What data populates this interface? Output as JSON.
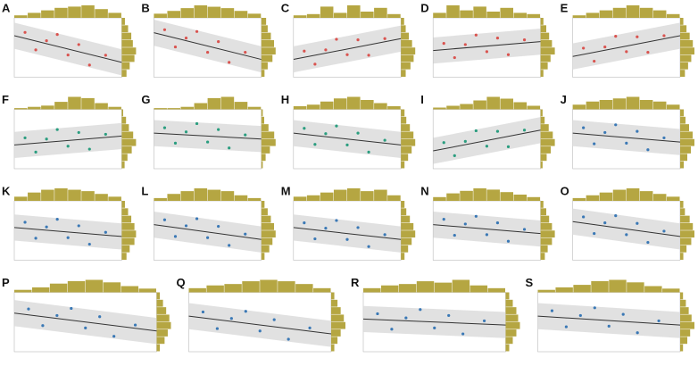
{
  "chart_data": [
    {
      "type": "scatter",
      "label": "A",
      "color": "#d9534f",
      "xlim": [
        0,
        1
      ],
      "ylim": [
        0,
        1
      ],
      "x": [
        0.1,
        0.2,
        0.3,
        0.4,
        0.5,
        0.6,
        0.7,
        0.85
      ],
      "y": [
        0.755,
        0.46,
        0.615,
        0.72,
        0.375,
        0.55,
        0.205,
        0.37
      ],
      "fit": [
        0.7,
        0.25
      ],
      "xhist": [
        2,
        4,
        6,
        8,
        9,
        10,
        7,
        4
      ],
      "yhist": [
        3,
        5,
        8,
        9,
        7,
        6,
        4,
        2
      ]
    },
    {
      "type": "scatter",
      "label": "B",
      "color": "#d9534f",
      "xlim": [
        0,
        1
      ],
      "ylim": [
        0,
        1
      ],
      "x": [
        0.1,
        0.2,
        0.3,
        0.4,
        0.5,
        0.6,
        0.7,
        0.85
      ],
      "y": [
        0.8,
        0.51,
        0.66,
        0.77,
        0.42,
        0.6,
        0.25,
        0.42
      ],
      "fit": [
        0.75,
        0.3
      ],
      "xhist": [
        3,
        5,
        7,
        9,
        8,
        7,
        5,
        3
      ],
      "yhist": [
        2,
        4,
        7,
        9,
        8,
        6,
        4,
        3
      ]
    },
    {
      "type": "scatter",
      "label": "C",
      "color": "#d9534f",
      "xlim": [
        0,
        1
      ],
      "ylim": [
        0,
        1
      ],
      "x": [
        0.1,
        0.2,
        0.3,
        0.4,
        0.5,
        0.6,
        0.7,
        0.85
      ],
      "y": [
        0.44,
        0.22,
        0.46,
        0.64,
        0.38,
        0.63,
        0.37,
        0.65
      ],
      "fit": [
        0.3,
        0.65
      ],
      "xhist": [
        2,
        3,
        9,
        4,
        10,
        5,
        8,
        3
      ],
      "yhist": [
        3,
        6,
        8,
        9,
        7,
        5,
        3,
        2
      ]
    },
    {
      "type": "scatter",
      "label": "D",
      "color": "#d9534f",
      "xlim": [
        0,
        1
      ],
      "ylim": [
        0,
        1
      ],
      "x": [
        0.1,
        0.2,
        0.3,
        0.4,
        0.5,
        0.6,
        0.7,
        0.85
      ],
      "y": [
        0.57,
        0.33,
        0.55,
        0.71,
        0.43,
        0.66,
        0.38,
        0.63
      ],
      "fit": [
        0.45,
        0.6
      ],
      "xhist": [
        4,
        10,
        6,
        9,
        5,
        8,
        4,
        3
      ],
      "yhist": [
        2,
        5,
        7,
        10,
        8,
        6,
        4,
        2
      ]
    },
    {
      "type": "scatter",
      "label": "E",
      "color": "#d9534f",
      "xlim": [
        0,
        1
      ],
      "ylim": [
        0,
        1
      ],
      "x": [
        0.1,
        0.2,
        0.3,
        0.4,
        0.5,
        0.6,
        0.7,
        0.85
      ],
      "y": [
        0.49,
        0.27,
        0.51,
        0.69,
        0.43,
        0.68,
        0.42,
        0.7
      ],
      "fit": [
        0.35,
        0.7
      ],
      "xhist": [
        2,
        4,
        6,
        8,
        10,
        8,
        6,
        3
      ],
      "yhist": [
        3,
        5,
        7,
        9,
        8,
        6,
        4,
        2
      ]
    },
    {
      "type": "scatter",
      "label": "F",
      "color": "#2a9d7f",
      "xlim": [
        0,
        1
      ],
      "ylim": [
        0,
        1
      ],
      "x": [
        0.1,
        0.2,
        0.3,
        0.4,
        0.5,
        0.6,
        0.7,
        0.85
      ],
      "y": [
        0.52,
        0.28,
        0.5,
        0.66,
        0.38,
        0.61,
        0.33,
        0.58
      ],
      "fit": [
        0.4,
        0.55
      ],
      "xhist": [
        1,
        2,
        3,
        6,
        10,
        9,
        5,
        2
      ],
      "yhist": [
        2,
        4,
        7,
        10,
        8,
        5,
        3,
        1
      ]
    },
    {
      "type": "scatter",
      "label": "G",
      "color": "#2a9d7f",
      "xlim": [
        0,
        1
      ],
      "ylim": [
        0,
        1
      ],
      "x": [
        0.1,
        0.2,
        0.3,
        0.4,
        0.5,
        0.6,
        0.7,
        0.85
      ],
      "y": [
        0.69,
        0.43,
        0.62,
        0.76,
        0.45,
        0.66,
        0.35,
        0.57
      ],
      "fit": [
        0.6,
        0.5
      ],
      "xhist": [
        1,
        1,
        2,
        5,
        9,
        10,
        6,
        2
      ],
      "yhist": [
        1,
        3,
        6,
        10,
        9,
        5,
        2,
        1
      ]
    },
    {
      "type": "scatter",
      "label": "H",
      "color": "#2a9d7f",
      "xlim": [
        0,
        1
      ],
      "ylim": [
        0,
        1
      ],
      "x": [
        0.1,
        0.2,
        0.3,
        0.4,
        0.5,
        0.6,
        0.7,
        0.85
      ],
      "y": [
        0.68,
        0.41,
        0.59,
        0.72,
        0.4,
        0.6,
        0.28,
        0.48
      ],
      "fit": [
        0.6,
        0.4
      ],
      "xhist": [
        2,
        3,
        5,
        7,
        8,
        6,
        4,
        2
      ],
      "yhist": [
        2,
        4,
        6,
        8,
        7,
        5,
        3,
        2
      ]
    },
    {
      "type": "scatter",
      "label": "I",
      "color": "#2a9d7f",
      "xlim": [
        0,
        1
      ],
      "ylim": [
        0,
        1
      ],
      "x": [
        0.1,
        0.2,
        0.3,
        0.4,
        0.5,
        0.6,
        0.7,
        0.85
      ],
      "y": [
        0.44,
        0.22,
        0.46,
        0.64,
        0.38,
        0.63,
        0.37,
        0.65
      ],
      "fit": [
        0.3,
        0.65
      ],
      "xhist": [
        1,
        2,
        3,
        5,
        7,
        6,
        4,
        2
      ],
      "yhist": [
        1,
        3,
        5,
        7,
        6,
        4,
        2,
        1
      ]
    },
    {
      "type": "scatter",
      "label": "J",
      "color": "#3a78b5",
      "xlim": [
        0,
        1
      ],
      "ylim": [
        0,
        1
      ],
      "x": [
        0.1,
        0.2,
        0.3,
        0.4,
        0.5,
        0.6,
        0.7,
        0.85
      ],
      "y": [
        0.69,
        0.42,
        0.61,
        0.74,
        0.43,
        0.63,
        0.32,
        0.52
      ],
      "fit": [
        0.6,
        0.45
      ],
      "xhist": [
        3,
        5,
        6,
        7,
        8,
        6,
        5,
        3
      ],
      "yhist": [
        2,
        4,
        6,
        8,
        7,
        5,
        3,
        2
      ]
    },
    {
      "type": "scatter",
      "label": "K",
      "color": "#3a78b5",
      "xlim": [
        0,
        1
      ],
      "ylim": [
        0,
        1
      ],
      "x": [
        0.1,
        0.2,
        0.3,
        0.4,
        0.5,
        0.6,
        0.7,
        0.85
      ],
      "y": [
        0.64,
        0.37,
        0.56,
        0.69,
        0.38,
        0.58,
        0.27,
        0.47
      ],
      "fit": [
        0.55,
        0.4
      ],
      "xhist": [
        3,
        6,
        8,
        9,
        8,
        7,
        5,
        3
      ],
      "yhist": [
        3,
        5,
        8,
        9,
        8,
        6,
        4,
        2
      ]
    },
    {
      "type": "scatter",
      "label": "L",
      "color": "#3a78b5",
      "xlim": [
        0,
        1
      ],
      "ylim": [
        0,
        1
      ],
      "x": [
        0.1,
        0.2,
        0.3,
        0.4,
        0.5,
        0.6,
        0.7,
        0.85
      ],
      "y": [
        0.68,
        0.4,
        0.58,
        0.7,
        0.38,
        0.57,
        0.25,
        0.44
      ],
      "fit": [
        0.6,
        0.35
      ],
      "xhist": [
        2,
        5,
        7,
        9,
        8,
        7,
        4,
        2
      ],
      "yhist": [
        2,
        5,
        7,
        9,
        8,
        6,
        4,
        2
      ]
    },
    {
      "type": "scatter",
      "label": "M",
      "color": "#3a78b5",
      "xlim": [
        0,
        1
      ],
      "ylim": [
        0,
        1
      ],
      "x": [
        0.1,
        0.2,
        0.3,
        0.4,
        0.5,
        0.6,
        0.7,
        0.85
      ],
      "y": [
        0.63,
        0.36,
        0.54,
        0.67,
        0.35,
        0.55,
        0.23,
        0.43
      ],
      "fit": [
        0.55,
        0.35
      ],
      "xhist": [
        3,
        4,
        6,
        8,
        9,
        7,
        8,
        4
      ],
      "yhist": [
        2,
        4,
        6,
        8,
        7,
        5,
        3,
        2
      ]
    },
    {
      "type": "scatter",
      "label": "N",
      "color": "#3a78b5",
      "xlim": [
        0,
        1
      ],
      "ylim": [
        0,
        1
      ],
      "x": [
        0.1,
        0.2,
        0.3,
        0.4,
        0.5,
        0.6,
        0.7,
        0.85
      ],
      "y": [
        0.69,
        0.42,
        0.61,
        0.74,
        0.43,
        0.63,
        0.32,
        0.52
      ],
      "fit": [
        0.6,
        0.45
      ],
      "xhist": [
        3,
        6,
        8,
        10,
        9,
        7,
        5,
        3
      ],
      "yhist": [
        3,
        5,
        8,
        10,
        8,
        6,
        4,
        2
      ]
    },
    {
      "type": "scatter",
      "label": "O",
      "color": "#3a78b5",
      "xlim": [
        0,
        1
      ],
      "ylim": [
        0,
        1
      ],
      "x": [
        0.1,
        0.2,
        0.3,
        0.4,
        0.5,
        0.6,
        0.7,
        0.85
      ],
      "y": [
        0.73,
        0.45,
        0.63,
        0.75,
        0.43,
        0.62,
        0.3,
        0.49
      ],
      "fit": [
        0.65,
        0.4
      ],
      "xhist": [
        2,
        4,
        6,
        8,
        9,
        7,
        5,
        3
      ],
      "yhist": [
        2,
        4,
        7,
        9,
        8,
        6,
        3,
        2
      ]
    },
    {
      "type": "scatter",
      "label": "P",
      "color": "#3a78b5",
      "xlim": [
        0,
        1
      ],
      "ylim": [
        0,
        1
      ],
      "x": [
        0.1,
        0.2,
        0.3,
        0.4,
        0.5,
        0.6,
        0.7,
        0.85
      ],
      "y": [
        0.72,
        0.44,
        0.61,
        0.73,
        0.4,
        0.59,
        0.26,
        0.45
      ],
      "fit": [
        0.65,
        0.35
      ],
      "xhist": [
        2,
        4,
        7,
        9,
        10,
        8,
        5,
        3
      ],
      "yhist": [
        2,
        5,
        7,
        9,
        8,
        6,
        4,
        2
      ]
    },
    {
      "type": "scatter",
      "label": "Q",
      "color": "#3a78b5",
      "xlim": [
        0,
        1
      ],
      "ylim": [
        0,
        1
      ],
      "x": [
        0.1,
        0.2,
        0.3,
        0.4,
        0.5,
        0.6,
        0.7,
        0.85
      ],
      "y": [
        0.67,
        0.39,
        0.56,
        0.68,
        0.35,
        0.54,
        0.21,
        0.4
      ],
      "fit": [
        0.6,
        0.3
      ],
      "xhist": [
        3,
        5,
        6,
        8,
        9,
        8,
        6,
        3
      ],
      "yhist": [
        2,
        4,
        6,
        9,
        8,
        6,
        4,
        2
      ]
    },
    {
      "type": "scatter",
      "label": "R",
      "color": "#3a78b5",
      "xlim": [
        0,
        1
      ],
      "ylim": [
        0,
        1
      ],
      "x": [
        0.1,
        0.2,
        0.3,
        0.4,
        0.5,
        0.6,
        0.7,
        0.85
      ],
      "y": [
        0.64,
        0.38,
        0.57,
        0.71,
        0.4,
        0.61,
        0.3,
        0.52
      ],
      "fit": [
        0.55,
        0.45
      ],
      "xhist": [
        3,
        5,
        6,
        8,
        7,
        9,
        5,
        3
      ],
      "yhist": [
        2,
        4,
        6,
        8,
        7,
        6,
        4,
        2
      ]
    },
    {
      "type": "scatter",
      "label": "S",
      "color": "#3a78b5",
      "xlim": [
        0,
        1
      ],
      "ylim": [
        0,
        1
      ],
      "x": [
        0.1,
        0.2,
        0.3,
        0.4,
        0.5,
        0.6,
        0.7,
        0.85
      ],
      "y": [
        0.69,
        0.42,
        0.61,
        0.74,
        0.43,
        0.63,
        0.32,
        0.52
      ],
      "fit": [
        0.6,
        0.45
      ],
      "xhist": [
        2,
        4,
        6,
        9,
        10,
        8,
        5,
        3
      ],
      "yhist": [
        2,
        5,
        7,
        10,
        8,
        6,
        4,
        2
      ]
    }
  ]
}
